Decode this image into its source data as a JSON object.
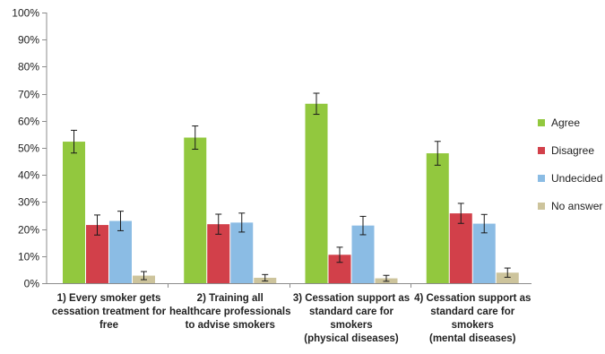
{
  "chart_data": {
    "type": "bar",
    "title": "",
    "xlabel": "",
    "ylabel": "",
    "ylim": [
      0,
      100
    ],
    "y_tick_step": 10,
    "y_tick_format": "percent",
    "grid": false,
    "legend_position": "right",
    "categories": [
      [
        "1) Every smoker gets",
        "cessation treatment for",
        "free"
      ],
      [
        "2) Training all",
        "healthcare professionals",
        "to advise smokers"
      ],
      [
        "3) Cessation support as",
        "standard care for",
        "smokers",
        "(physical diseases)"
      ],
      [
        "4) Cessation support as",
        "standard care for",
        "smokers",
        "(mental diseases)"
      ]
    ],
    "series": [
      {
        "name": "Agree",
        "color": "#92c83e",
        "values": [
          52.3,
          53.8,
          66.3,
          48.0
        ],
        "error": [
          4.2,
          4.3,
          3.9,
          4.4
        ]
      },
      {
        "name": "Disagree",
        "color": "#d2404a",
        "values": [
          21.5,
          21.8,
          10.5,
          25.8
        ],
        "error": [
          3.7,
          3.7,
          2.8,
          3.7
        ]
      },
      {
        "name": "Undecided",
        "color": "#8bbce4",
        "values": [
          23.0,
          22.4,
          21.3,
          22.0
        ],
        "error": [
          3.6,
          3.5,
          3.4,
          3.4
        ]
      },
      {
        "name": "No answer",
        "color": "#cdc49c",
        "values": [
          2.8,
          2.0,
          1.8,
          3.9
        ],
        "error": [
          1.5,
          1.2,
          1.1,
          1.7
        ]
      }
    ]
  }
}
